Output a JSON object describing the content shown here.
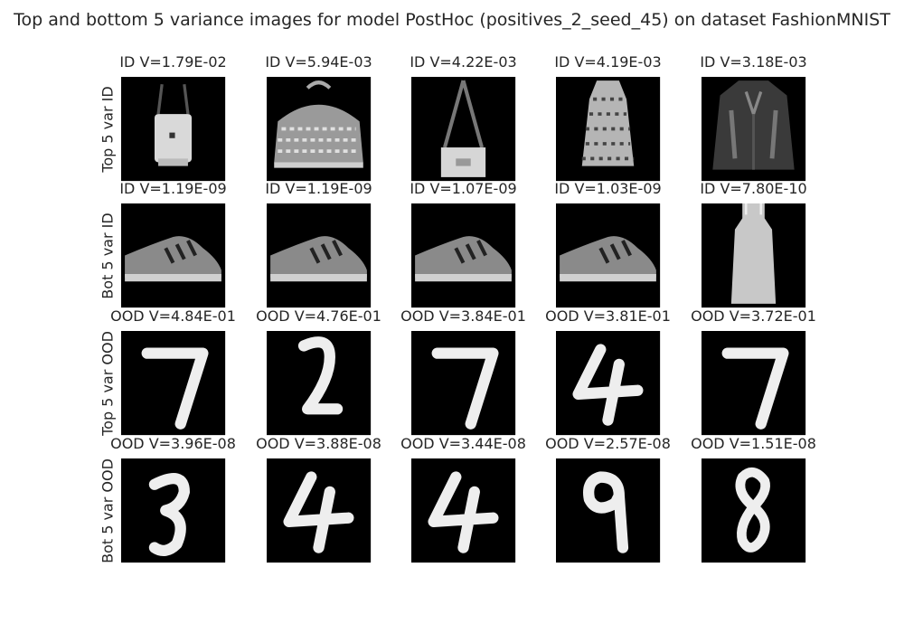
{
  "title": "Top and bottom 5 variance images for model PostHoc (positives_2_seed_45) on dataset FashionMNIST",
  "rows": [
    {
      "label": "Top 5 var ID",
      "cells": [
        {
          "title": "ID V=1.79E-02",
          "content": "bag-with-strap"
        },
        {
          "title": "ID V=5.94E-03",
          "content": "patterned-clutch-bag"
        },
        {
          "title": "ID V=4.22E-03",
          "content": "shoulder-bag"
        },
        {
          "title": "ID V=4.19E-03",
          "content": "patterned-dress"
        },
        {
          "title": "ID V=3.18E-03",
          "content": "dark-coat"
        }
      ]
    },
    {
      "label": "Bot 5 var ID",
      "cells": [
        {
          "title": "ID V=1.19E-09",
          "content": "sneaker"
        },
        {
          "title": "ID V=1.19E-09",
          "content": "sneaker"
        },
        {
          "title": "ID V=1.07E-09",
          "content": "sneaker"
        },
        {
          "title": "ID V=1.03E-09",
          "content": "sneaker"
        },
        {
          "title": "ID V=7.80E-10",
          "content": "dress"
        }
      ]
    },
    {
      "label": "Top 5 var OOD",
      "cells": [
        {
          "title": "OOD V=4.84E-01",
          "content": "digit-7"
        },
        {
          "title": "OOD V=4.76E-01",
          "content": "digit-2"
        },
        {
          "title": "OOD V=3.84E-01",
          "content": "digit-7"
        },
        {
          "title": "OOD V=3.81E-01",
          "content": "digit-4"
        },
        {
          "title": "OOD V=3.72E-01",
          "content": "digit-7"
        }
      ]
    },
    {
      "label": "Bot 5 var OOD",
      "cells": [
        {
          "title": "OOD V=3.96E-08",
          "content": "digit-3"
        },
        {
          "title": "OOD V=3.88E-08",
          "content": "digit-4"
        },
        {
          "title": "OOD V=3.44E-08",
          "content": "digit-4"
        },
        {
          "title": "OOD V=2.57E-08",
          "content": "digit-9"
        },
        {
          "title": "OOD V=1.51E-08",
          "content": "digit-8"
        }
      ]
    }
  ]
}
